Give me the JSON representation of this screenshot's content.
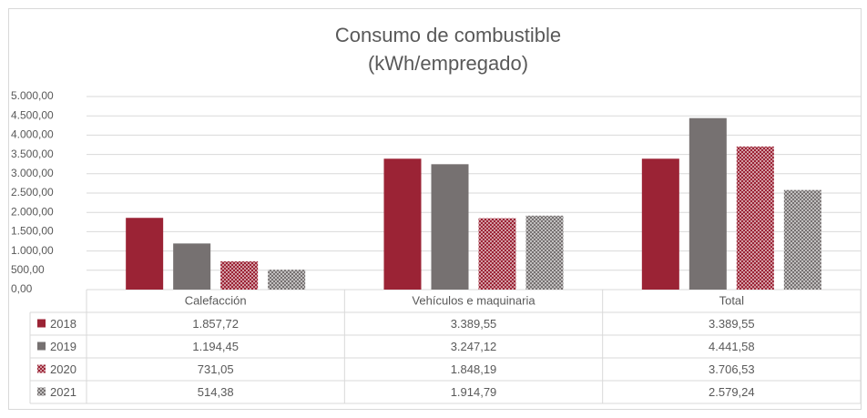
{
  "chart_data": {
    "type": "bar",
    "title": "Consumo de combustible",
    "subtitle": "(kWh/empregado)",
    "categories": [
      "Calefacción",
      "Vehículos e maquinaria",
      "Total"
    ],
    "series": [
      {
        "name": "2018",
        "color": "#9b2335",
        "pattern": false,
        "values": [
          1857.72,
          3389.55,
          3389.55
        ],
        "value_labels": [
          "1.857,72",
          "3.389,55",
          "3.389,55"
        ]
      },
      {
        "name": "2019",
        "color": "#767171",
        "pattern": false,
        "values": [
          1194.45,
          3247.12,
          4441.58
        ],
        "value_labels": [
          "1.194,45",
          "3.247,12",
          "4.441,58"
        ]
      },
      {
        "name": "2020",
        "color": "#9b2335",
        "pattern": true,
        "values": [
          731.05,
          1848.19,
          3706.53
        ],
        "value_labels": [
          "731,05",
          "1.848,19",
          "3.706,53"
        ]
      },
      {
        "name": "2021",
        "color": "#767171",
        "pattern": true,
        "values": [
          514.38,
          1914.79,
          2579.24
        ],
        "value_labels": [
          "514,38",
          "1.914,79",
          "2.579,24"
        ]
      }
    ],
    "ylim": [
      0,
      5000
    ],
    "yticks": [
      {
        "value": 0,
        "label": "0,00"
      },
      {
        "value": 500,
        "label": "500,00"
      },
      {
        "value": 1000,
        "label": "1.000,00"
      },
      {
        "value": 1500,
        "label": "1.500,00"
      },
      {
        "value": 2000,
        "label": "2.000,00"
      },
      {
        "value": 2500,
        "label": "2.500,00"
      },
      {
        "value": 3000,
        "label": "3.000,00"
      },
      {
        "value": 3500,
        "label": "3.500,00"
      },
      {
        "value": 4000,
        "label": "4.000,00"
      },
      {
        "value": 4500,
        "label": "4.500,00"
      },
      {
        "value": 5000,
        "label": "5.000,00"
      }
    ],
    "grid": true
  }
}
